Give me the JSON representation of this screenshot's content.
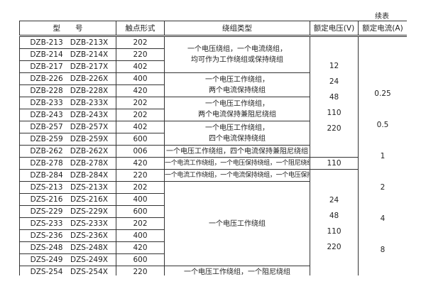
{
  "continued_label": "续表",
  "headers": [
    "型　　号",
    "触点形式",
    "绕组类型",
    "额定电压(V)",
    "额定电流(A)"
  ],
  "rows": [
    {
      "a": "DZB-213",
      "b": "DZB-213X",
      "contact": "202"
    },
    {
      "a": "DZB-214",
      "b": "DZB-214X",
      "contact": "220"
    },
    {
      "a": "DZB-217",
      "b": "DZB-217X",
      "contact": "402"
    },
    {
      "a": "DZB-226",
      "b": "DZB-226X",
      "contact": "400"
    },
    {
      "a": "DZB-228",
      "b": "DZB-228X",
      "contact": "420"
    },
    {
      "a": "DZB-233",
      "b": "DZB-233X",
      "contact": "202"
    },
    {
      "a": "DZB-243",
      "b": "DZB-243X",
      "contact": "202"
    },
    {
      "a": "DZB-257",
      "b": "DZB-257X",
      "contact": "402"
    },
    {
      "a": "DZB-259",
      "b": "DZB-259X",
      "contact": "600"
    },
    {
      "a": "DZB-262",
      "b": "DZB-262X",
      "contact": "006"
    },
    {
      "a": "DZB-278",
      "b": "DZB-278X",
      "contact": "420"
    },
    {
      "a": "DZB-284",
      "b": "DZB-284X",
      "contact": "220"
    },
    {
      "a": "DZS-213",
      "b": "DZS-213X",
      "contact": "202"
    },
    {
      "a": "DZS-216",
      "b": "DZS-216X",
      "contact": "400"
    },
    {
      "a": "DZS-229",
      "b": "DZS-229X",
      "contact": "600"
    },
    {
      "a": "DZS-233",
      "b": "DZS-233X",
      "contact": "202"
    },
    {
      "a": "DZS-236",
      "b": "DZS-236X",
      "contact": "400"
    },
    {
      "a": "DZS-248",
      "b": "DZS-248X",
      "contact": "420"
    },
    {
      "a": "DZS-249",
      "b": "DZS-249X",
      "contact": "600"
    },
    {
      "a": "DZS-254",
      "b": "DZS-254X",
      "contact": "220"
    }
  ],
  "windings": [
    [
      "一个电压绕组，一个电流绕组，",
      "均可作为工作绕组或保持绕组"
    ],
    [
      "一个电压工作绕组，",
      "两个电流保持绕组"
    ],
    [
      "一个电压工作绕组，",
      "两个电流保持兼阻尼绕组"
    ],
    [
      "一个电压工作绕组，",
      "四个电流保持绕组"
    ],
    [
      "一个电压工作绕组，四个电流保持兼阻尼绕组"
    ],
    [
      "一个电流工作绕组，一个电压保持绕组，一个阻尼绕组"
    ],
    [
      "一个电流工作绕组，一个电流保持绕组，一个电压保持绕组"
    ],
    [
      "一个电压工作绕组"
    ],
    [
      "一个电压工作绕组，一个阻尼绕组"
    ]
  ],
  "voltages": [
    [
      "12",
      "24",
      "48",
      "110",
      "220"
    ],
    [
      "110"
    ],
    [
      "24",
      "48",
      "110",
      "220"
    ]
  ],
  "currents": [
    "0.25",
    "0.5",
    "1",
    "2",
    "4",
    "8"
  ]
}
